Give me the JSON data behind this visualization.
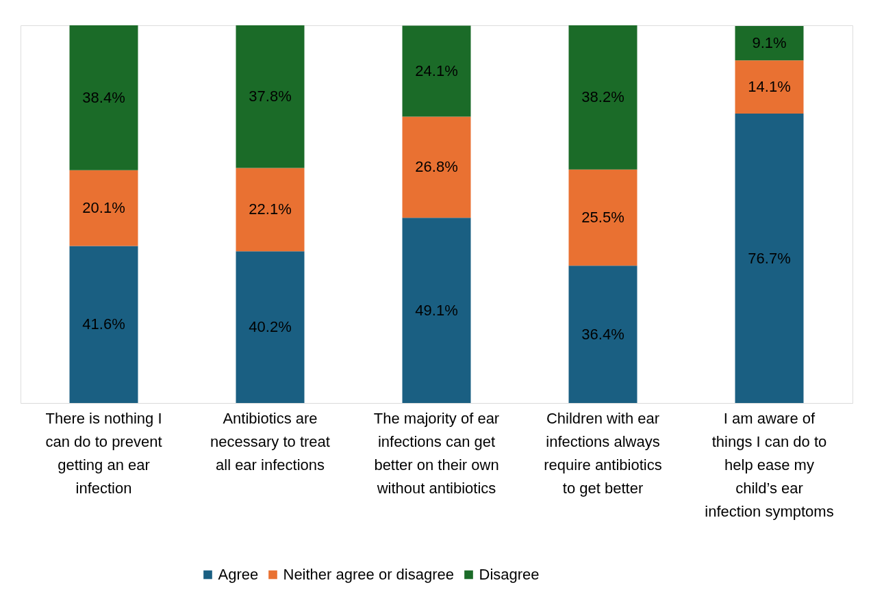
{
  "chart_data": {
    "type": "bar",
    "stacked": true,
    "grid": false,
    "legend": "bottom",
    "tick_labels": "x",
    "categories": [
      "There is nothing I can do to prevent getting an ear infection",
      "Antibiotics are necessary to treat all ear infections",
      "The majority of ear infections can get better on their own without antibiotics",
      "Children with ear infections always require antibiotics to get better",
      "I am aware of things I can do to help ease my child’s ear infection symptoms"
    ],
    "series": [
      {
        "name": "Agree",
        "color": "#1a5f82",
        "values": [
          41.6,
          40.2,
          49.1,
          36.4,
          76.7
        ],
        "value_labels": [
          "41.6%",
          "40.2%",
          "49.1%",
          "36.4%",
          "76.7%"
        ]
      },
      {
        "name": "Neither agree or disagree",
        "color": "#e97132",
        "values": [
          20.1,
          22.1,
          26.8,
          25.5,
          14.1
        ],
        "value_labels": [
          "20.1%",
          "22.1%",
          "26.8%",
          "25.5%",
          "14.1%"
        ]
      },
      {
        "name": "Disagree",
        "color": "#1b6b28",
        "values": [
          38.4,
          37.8,
          24.1,
          38.2,
          9.1
        ],
        "value_labels": [
          "38.4%",
          "37.8%",
          "24.1%",
          "38.2%",
          "9.1%"
        ]
      }
    ]
  }
}
